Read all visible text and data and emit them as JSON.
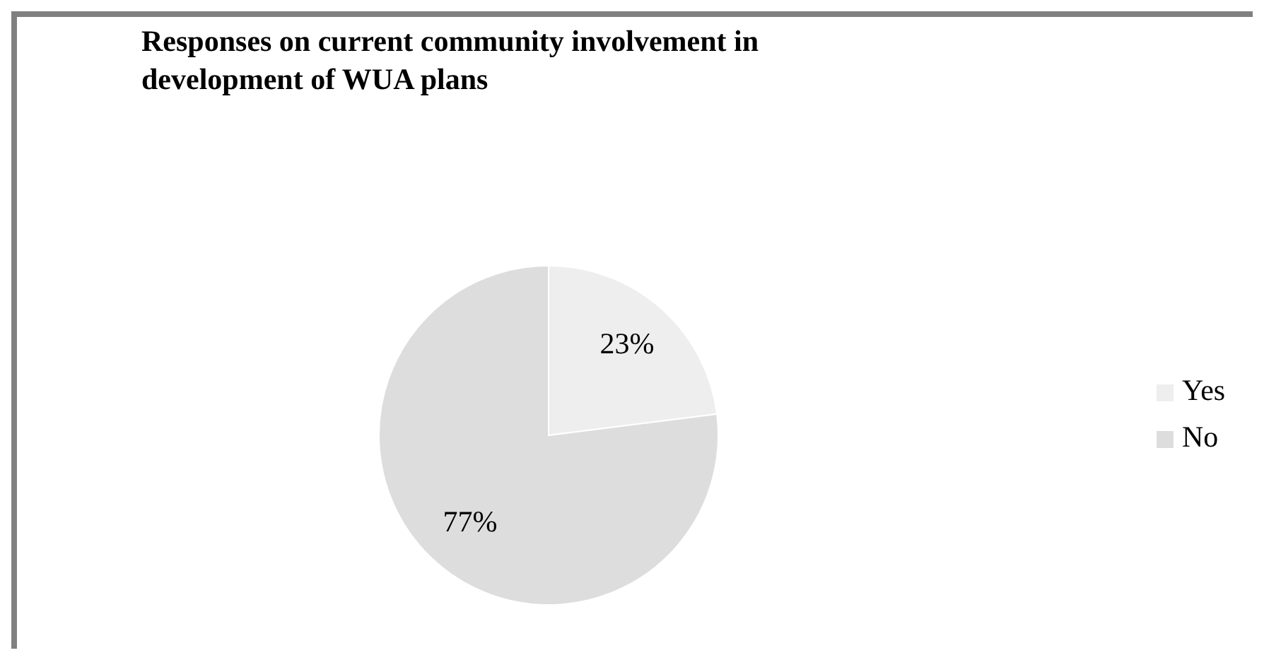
{
  "chart_data": {
    "type": "pie",
    "title": "Responses on current community involvement in development of WUA plans",
    "categories": [
      "Yes",
      "No"
    ],
    "values": [
      23,
      77
    ],
    "colors": [
      "#eeeeee",
      "#dddddd"
    ],
    "value_labels": [
      "23%",
      "77%"
    ],
    "legend": "right"
  }
}
